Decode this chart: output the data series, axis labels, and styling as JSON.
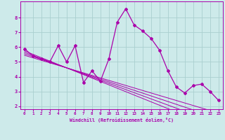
{
  "xlabel": "Windchill (Refroidissement éolien,°C)",
  "x_values": [
    0,
    1,
    2,
    3,
    4,
    5,
    6,
    7,
    8,
    9,
    10,
    11,
    12,
    13,
    14,
    15,
    16,
    17,
    18,
    19,
    20,
    21,
    22,
    23
  ],
  "main_line": [
    5.9,
    5.4,
    5.2,
    5.0,
    6.1,
    5.0,
    6.1,
    3.6,
    4.4,
    3.7,
    5.2,
    7.7,
    8.6,
    7.5,
    7.1,
    6.6,
    5.8,
    4.4,
    3.3,
    2.9,
    3.4,
    3.5,
    3.0,
    2.4
  ],
  "trend_lines": [
    [
      5.75,
      5.52,
      5.29,
      5.06,
      4.83,
      4.6,
      4.37,
      4.14,
      3.91,
      3.68,
      3.45,
      3.22,
      2.99,
      2.76,
      2.53,
      2.3,
      2.07,
      1.84,
      1.61,
      1.38,
      1.15,
      0.92,
      0.69,
      0.46
    ],
    [
      5.65,
      5.44,
      5.23,
      5.02,
      4.81,
      4.6,
      4.39,
      4.18,
      3.97,
      3.76,
      3.55,
      3.34,
      3.13,
      2.92,
      2.71,
      2.5,
      2.29,
      2.08,
      1.87,
      1.66,
      1.45,
      1.24,
      1.03,
      0.82
    ],
    [
      5.55,
      5.36,
      5.17,
      4.98,
      4.79,
      4.6,
      4.41,
      4.22,
      4.03,
      3.84,
      3.65,
      3.46,
      3.27,
      3.08,
      2.89,
      2.7,
      2.51,
      2.32,
      2.13,
      1.94,
      1.75,
      1.56,
      1.37,
      1.18
    ],
    [
      5.45,
      5.28,
      5.11,
      4.94,
      4.77,
      4.6,
      4.43,
      4.26,
      4.09,
      3.92,
      3.75,
      3.58,
      3.41,
      3.24,
      3.07,
      2.9,
      2.73,
      2.56,
      2.39,
      2.22,
      2.05,
      1.88,
      1.71,
      1.54
    ]
  ],
  "line_color": "#aa00aa",
  "bg_color": "#cdeaea",
  "grid_color": "#aacfcf",
  "xlim": [
    -0.5,
    23.5
  ],
  "ylim": [
    1.8,
    9.1
  ],
  "yticks": [
    2,
    3,
    4,
    5,
    6,
    7,
    8
  ],
  "xticks": [
    0,
    1,
    2,
    3,
    4,
    5,
    6,
    7,
    8,
    9,
    10,
    11,
    12,
    13,
    14,
    15,
    16,
    17,
    18,
    19,
    20,
    21,
    22,
    23
  ]
}
